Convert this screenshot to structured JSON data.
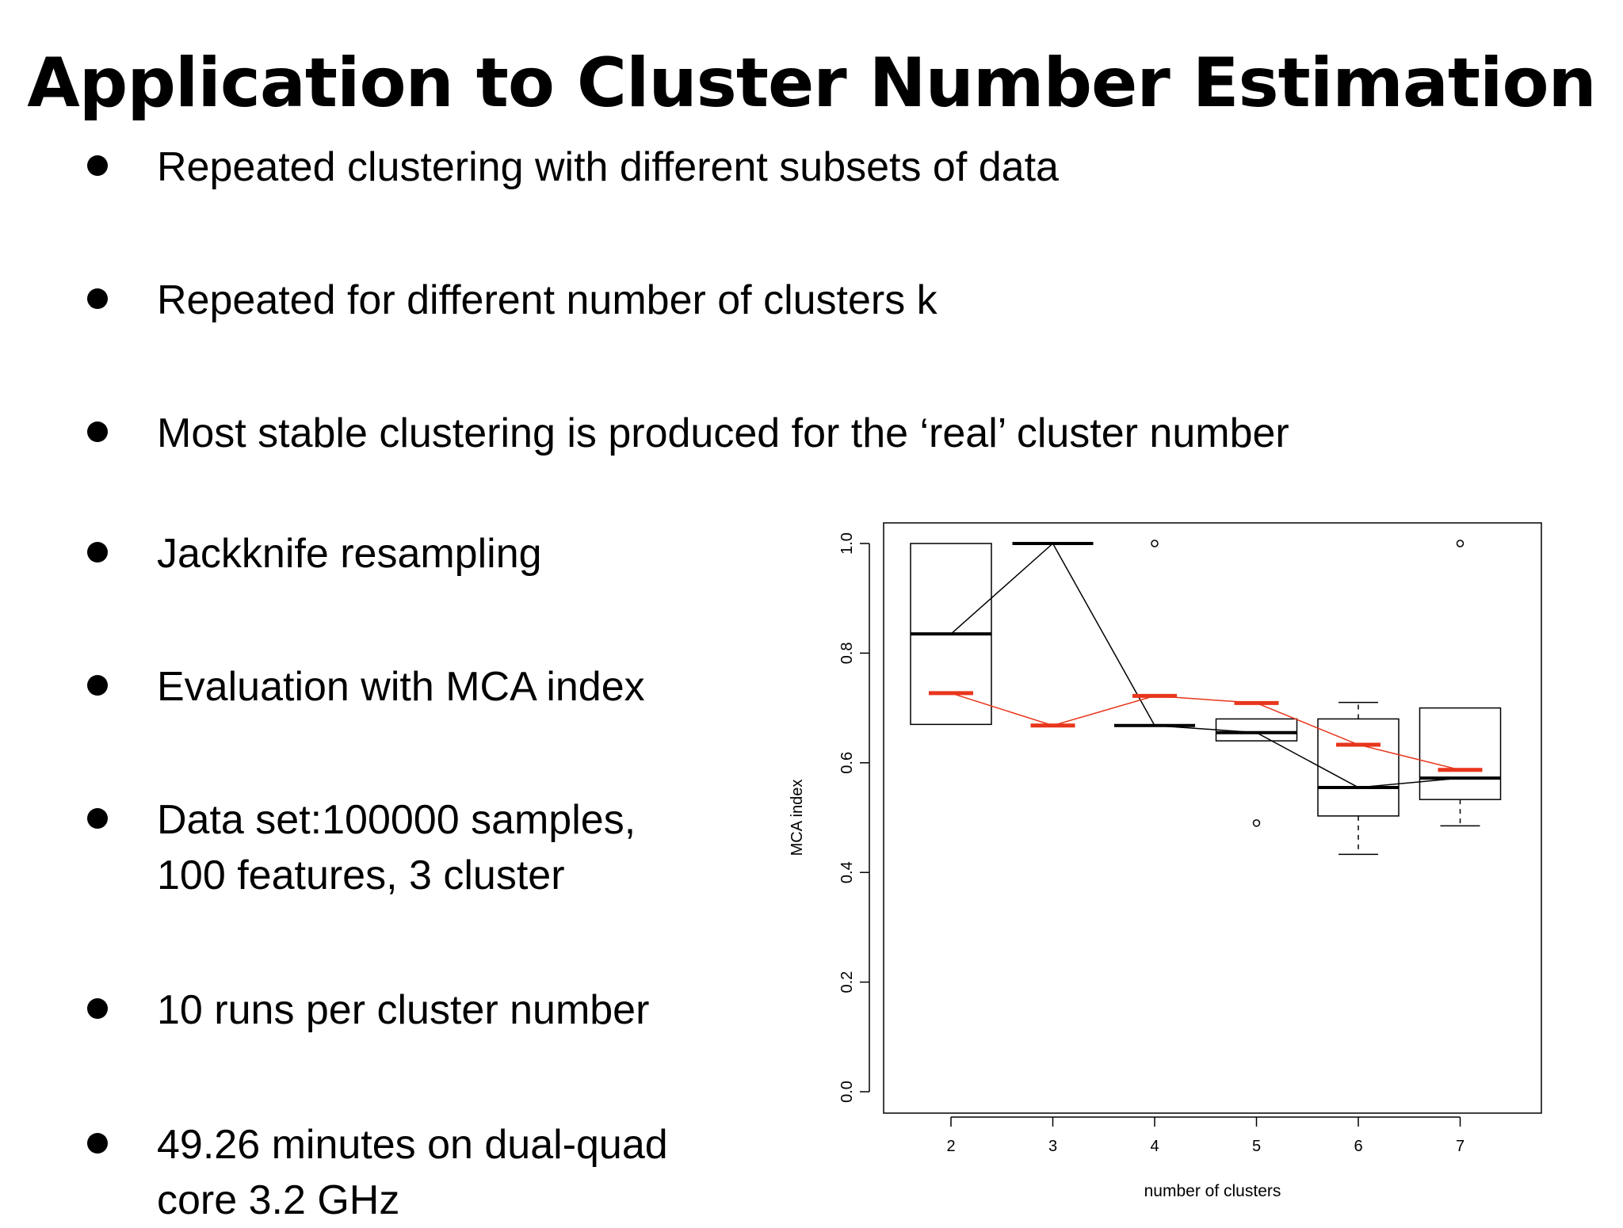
{
  "slide": {
    "title": "Application to Cluster Number Estimation",
    "bullets": [
      {
        "lines": [
          "Repeated clustering with different subsets of data"
        ]
      },
      {
        "lines": [
          "Repeated for different number of clusters k"
        ]
      },
      {
        "lines": [
          "Most stable clustering is produced for the ‘real’ cluster number"
        ]
      },
      {
        "lines": [
          "Jackknife resampling"
        ]
      },
      {
        "lines": [
          "Evaluation with MCA index"
        ]
      },
      {
        "lines": [
          "Data set:100000 samples,",
          "100 features, 3 cluster"
        ]
      },
      {
        "lines": [
          "10 runs per cluster number"
        ]
      },
      {
        "lines": [
          "49.26 minutes on dual-quad",
          "core 3.2 GHz"
        ]
      }
    ]
  },
  "chart_data": {
    "type": "boxplot",
    "xlabel": "number of clusters",
    "ylabel": "MCA index",
    "ylim": [
      0.0,
      1.0
    ],
    "yticks": [
      "0.0",
      "0.2",
      "0.4",
      "0.6",
      "0.8",
      "1.0"
    ],
    "categories": [
      "2",
      "3",
      "4",
      "5",
      "6",
      "7"
    ],
    "boxes": [
      {
        "category": "2",
        "whisker_low": 0.67,
        "q1": 0.67,
        "median": 0.835,
        "q3": 1.0,
        "whisker_high": 1.0,
        "outliers": []
      },
      {
        "category": "3",
        "whisker_low": 1.0,
        "q1": 1.0,
        "median": 1.0,
        "q3": 1.0,
        "whisker_high": 1.0,
        "outliers": []
      },
      {
        "category": "4",
        "whisker_low": 0.668,
        "q1": 0.668,
        "median": 0.668,
        "q3": 0.668,
        "whisker_high": 0.668,
        "outliers": [
          1.0
        ]
      },
      {
        "category": "5",
        "whisker_low": 0.64,
        "q1": 0.64,
        "median": 0.655,
        "q3": 0.68,
        "whisker_high": 0.68,
        "outliers": [
          0.49
        ]
      },
      {
        "category": "6",
        "whisker_low": 0.433,
        "q1": 0.503,
        "median": 0.555,
        "q3": 0.68,
        "whisker_high": 0.71,
        "outliers": []
      },
      {
        "category": "7",
        "whisker_low": 0.485,
        "q1": 0.533,
        "median": 0.572,
        "q3": 0.7,
        "whisker_high": 0.7,
        "outliers": [
          1.0
        ]
      }
    ],
    "series": [
      {
        "values": [
          0.835,
          1.0,
          0.668,
          0.655,
          0.555,
          0.572
        ],
        "color": "#000000"
      },
      {
        "values": [
          0.727,
          0.668,
          0.722,
          0.709,
          0.633,
          0.587
        ],
        "color": "#e8361c"
      }
    ],
    "grid": false
  }
}
